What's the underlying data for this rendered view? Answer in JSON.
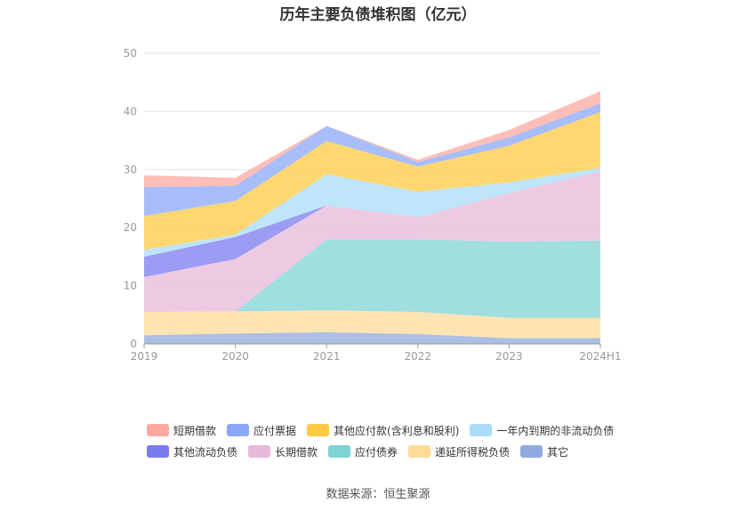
{
  "chart_data": {
    "type": "area",
    "stacked": true,
    "title": "历年主要负债堆积图（亿元）",
    "x": [
      "2019",
      "2020",
      "2021",
      "2022",
      "2023",
      "2024H1"
    ],
    "ylim": [
      0,
      50
    ],
    "yticks": [
      0,
      10,
      20,
      30,
      40,
      50
    ],
    "grid": true,
    "legend_position": "bottom",
    "series": [
      {
        "name": "其它",
        "color": "#8faadc",
        "values": [
          1.5,
          1.8,
          2.0,
          1.7,
          1.0,
          1.0
        ]
      },
      {
        "name": "递延所得税负债",
        "color": "#ffdb99",
        "values": [
          4.0,
          3.8,
          3.8,
          3.8,
          3.5,
          3.5
        ]
      },
      {
        "name": "应付债券",
        "color": "#80d4d4",
        "values": [
          0,
          0,
          12.2,
          12.5,
          13.1,
          13.3
        ]
      },
      {
        "name": "长期借款",
        "color": "#e8b8d8",
        "values": [
          6.0,
          9.0,
          5.8,
          3.8,
          8.4,
          11.9
        ]
      },
      {
        "name": "其他流动负债",
        "color": "#7b7bf0",
        "values": [
          3.5,
          3.8,
          0,
          0,
          0,
          0
        ]
      },
      {
        "name": "一年内到期的非流动负债",
        "color": "#a8dcf8",
        "values": [
          1.2,
          0.4,
          5.4,
          4.4,
          1.8,
          0.6
        ]
      },
      {
        "name": "其他应付款(含利息和股利)",
        "color": "#ffc940",
        "values": [
          5.8,
          5.8,
          5.7,
          4.3,
          6.3,
          9.6
        ]
      },
      {
        "name": "应付票据",
        "color": "#8aa8f8",
        "values": [
          5.0,
          2.6,
          2.6,
          0.8,
          1.4,
          1.5
        ]
      },
      {
        "name": "短期借款",
        "color": "#ffa8a0",
        "values": [
          2.0,
          1.4,
          0,
          0.4,
          1.3,
          2.1
        ]
      }
    ],
    "legend_order": [
      "短期借款",
      "应付票据",
      "其他应付款(含利息和股利)",
      "一年内到期的非流动负债",
      "其他流动负债",
      "长期借款",
      "应付债券",
      "递延所得税负债",
      "其它"
    ]
  },
  "source": "数据来源：恒生聚源"
}
